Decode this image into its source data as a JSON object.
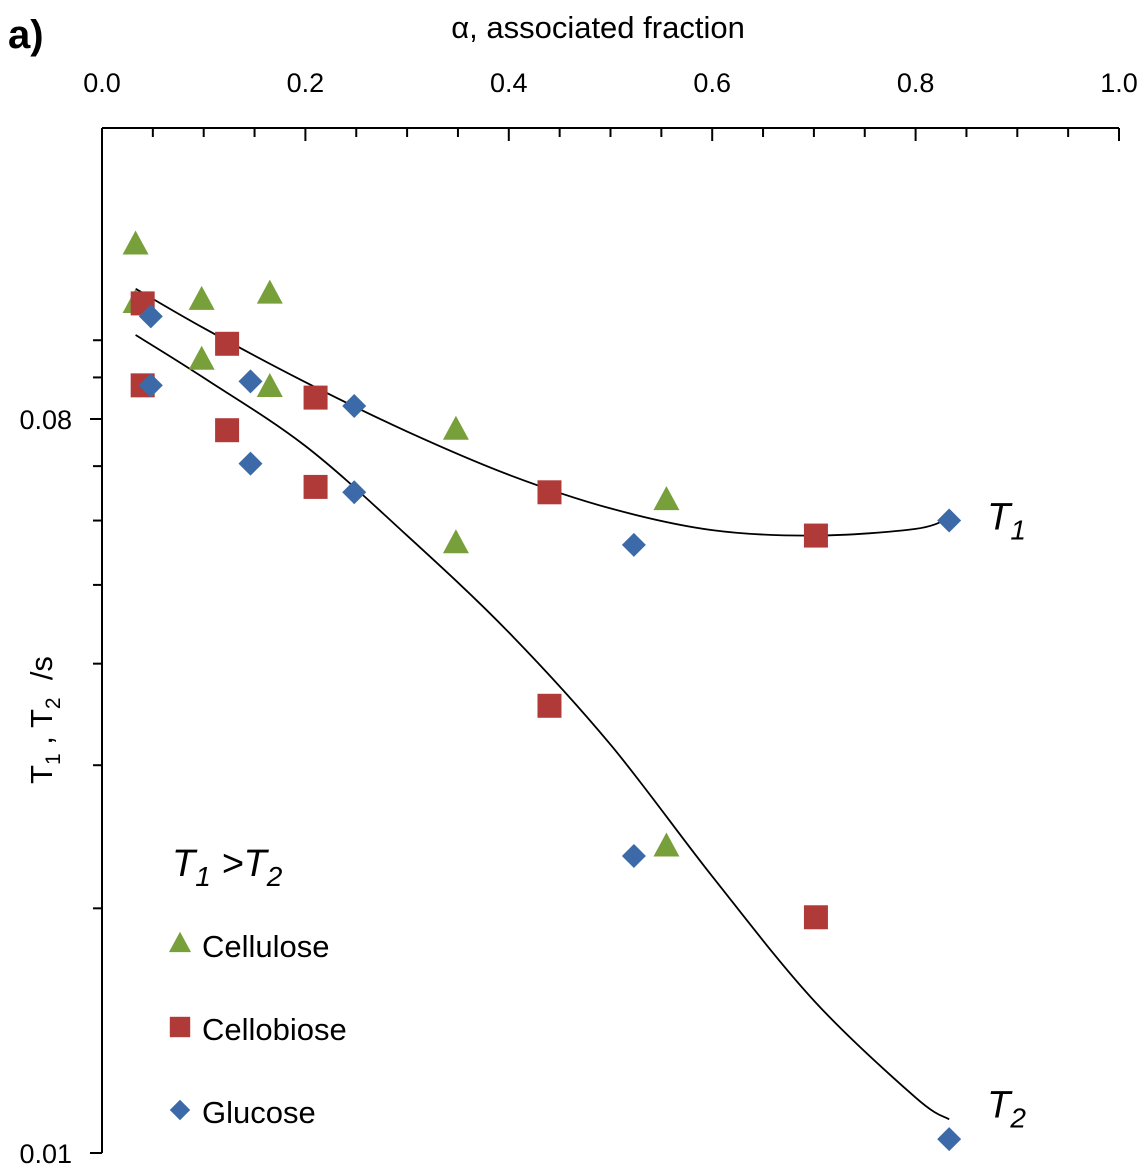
{
  "panel_label": "a)",
  "chart_data": {
    "type": "scatter",
    "x_axis": {
      "label": "α, associated fraction",
      "position": "top",
      "range": [
        0.0,
        1.0
      ],
      "ticks": [
        0.0,
        0.2,
        0.4,
        0.6,
        0.8,
        1.0
      ],
      "tick_labels": [
        "0.0",
        "0.2",
        "0.4",
        "0.6",
        "0.8",
        "1.0"
      ]
    },
    "y_axis": {
      "label": "T₁ , T₂ /s",
      "scale": "log",
      "range": [
        0.01,
        0.16
      ],
      "ticks": [
        0.01,
        0.08
      ],
      "tick_labels": [
        "0.01",
        "0.08"
      ]
    },
    "grid": false,
    "legend_placement": "bottom-left",
    "legend_title": "T₁ >T₂",
    "series": [
      {
        "name": "Cellulose",
        "marker": "triangle",
        "color": "#77a03a",
        "points": [
          {
            "x": 0.033,
            "y": 0.131,
            "kind": "T1"
          },
          {
            "x": 0.098,
            "y": 0.112,
            "kind": "T1"
          },
          {
            "x": 0.165,
            "y": 0.114,
            "kind": "T1"
          },
          {
            "x": 0.348,
            "y": 0.0775,
            "kind": "T1"
          },
          {
            "x": 0.555,
            "y": 0.0635,
            "kind": "T1"
          },
          {
            "x": 0.033,
            "y": 0.111,
            "kind": "T2"
          },
          {
            "x": 0.098,
            "y": 0.0945,
            "kind": "T2"
          },
          {
            "x": 0.165,
            "y": 0.0875,
            "kind": "T2"
          },
          {
            "x": 0.348,
            "y": 0.0562,
            "kind": "T2"
          },
          {
            "x": 0.555,
            "y": 0.0238,
            "kind": "T2"
          }
        ]
      },
      {
        "name": "Cellobiose",
        "marker": "square",
        "color": "#b03a38",
        "points": [
          {
            "x": 0.04,
            "y": 0.111,
            "kind": "T1"
          },
          {
            "x": 0.123,
            "y": 0.099,
            "kind": "T1"
          },
          {
            "x": 0.21,
            "y": 0.085,
            "kind": "T1"
          },
          {
            "x": 0.44,
            "y": 0.065,
            "kind": "T1"
          },
          {
            "x": 0.702,
            "y": 0.0575,
            "kind": "T1"
          },
          {
            "x": 0.04,
            "y": 0.088,
            "kind": "T2"
          },
          {
            "x": 0.123,
            "y": 0.0775,
            "kind": "T2"
          },
          {
            "x": 0.21,
            "y": 0.066,
            "kind": "T2"
          },
          {
            "x": 0.44,
            "y": 0.0355,
            "kind": "T2"
          },
          {
            "x": 0.702,
            "y": 0.0195,
            "kind": "T2"
          }
        ]
      },
      {
        "name": "Glucose",
        "marker": "diamond",
        "color": "#3c6aa8",
        "points": [
          {
            "x": 0.048,
            "y": 0.107,
            "kind": "T1"
          },
          {
            "x": 0.146,
            "y": 0.089,
            "kind": "T1"
          },
          {
            "x": 0.248,
            "y": 0.083,
            "kind": "T1"
          },
          {
            "x": 0.523,
            "y": 0.056,
            "kind": "T1"
          },
          {
            "x": 0.833,
            "y": 0.06,
            "kind": "T1"
          },
          {
            "x": 0.048,
            "y": 0.088,
            "kind": "T2"
          },
          {
            "x": 0.146,
            "y": 0.0705,
            "kind": "T2"
          },
          {
            "x": 0.248,
            "y": 0.065,
            "kind": "T2"
          },
          {
            "x": 0.523,
            "y": 0.0232,
            "kind": "T2"
          },
          {
            "x": 0.833,
            "y": 0.0104,
            "kind": "T2"
          }
        ]
      }
    ],
    "fit_curves": [
      {
        "label_main": "T",
        "label_sub": "1",
        "points": [
          [
            0.033,
            0.1157
          ],
          [
            0.1,
            0.1035
          ],
          [
            0.2,
            0.0888
          ],
          [
            0.3,
            0.0772
          ],
          [
            0.4,
            0.0683
          ],
          [
            0.5,
            0.0621
          ],
          [
            0.6,
            0.0584
          ],
          [
            0.7,
            0.0575
          ],
          [
            0.8,
            0.0586
          ],
          [
            0.833,
            0.0605
          ]
        ]
      },
      {
        "label_main": "T",
        "label_sub": "2",
        "points": [
          [
            0.033,
            0.1015
          ],
          [
            0.1,
            0.0899
          ],
          [
            0.2,
            0.0741
          ],
          [
            0.3,
            0.0575
          ],
          [
            0.4,
            0.0437
          ],
          [
            0.5,
            0.0318
          ],
          [
            0.6,
            0.0219
          ],
          [
            0.7,
            0.0154
          ],
          [
            0.8,
            0.0117
          ],
          [
            0.833,
            0.011
          ]
        ]
      }
    ]
  }
}
